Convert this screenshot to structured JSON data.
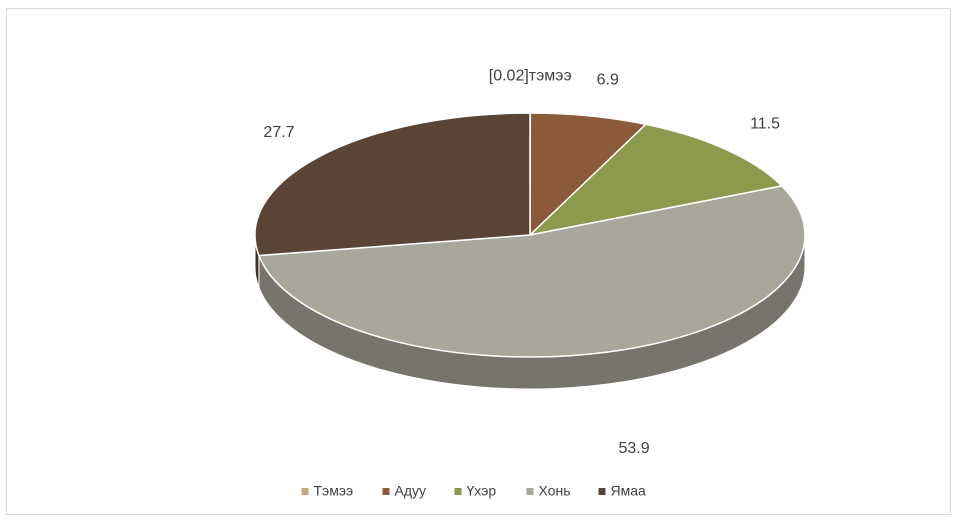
{
  "chart_data": {
    "type": "pie3d",
    "categories": [
      "Тэмээ",
      "Адуу",
      "Үхэр",
      "Хонь",
      "Ямаа"
    ],
    "values": [
      0.02,
      6.9,
      11.5,
      53.9,
      27.7
    ],
    "value_labels": [
      "[0.02]тэмээ",
      "6.9",
      "11.5",
      "53.9",
      "27.7"
    ],
    "colors": [
      "#c9a77a",
      "#8a5a3a",
      "#8d9a4e",
      "#a9a69a",
      "#5a4436"
    ],
    "legend": "bottom"
  }
}
